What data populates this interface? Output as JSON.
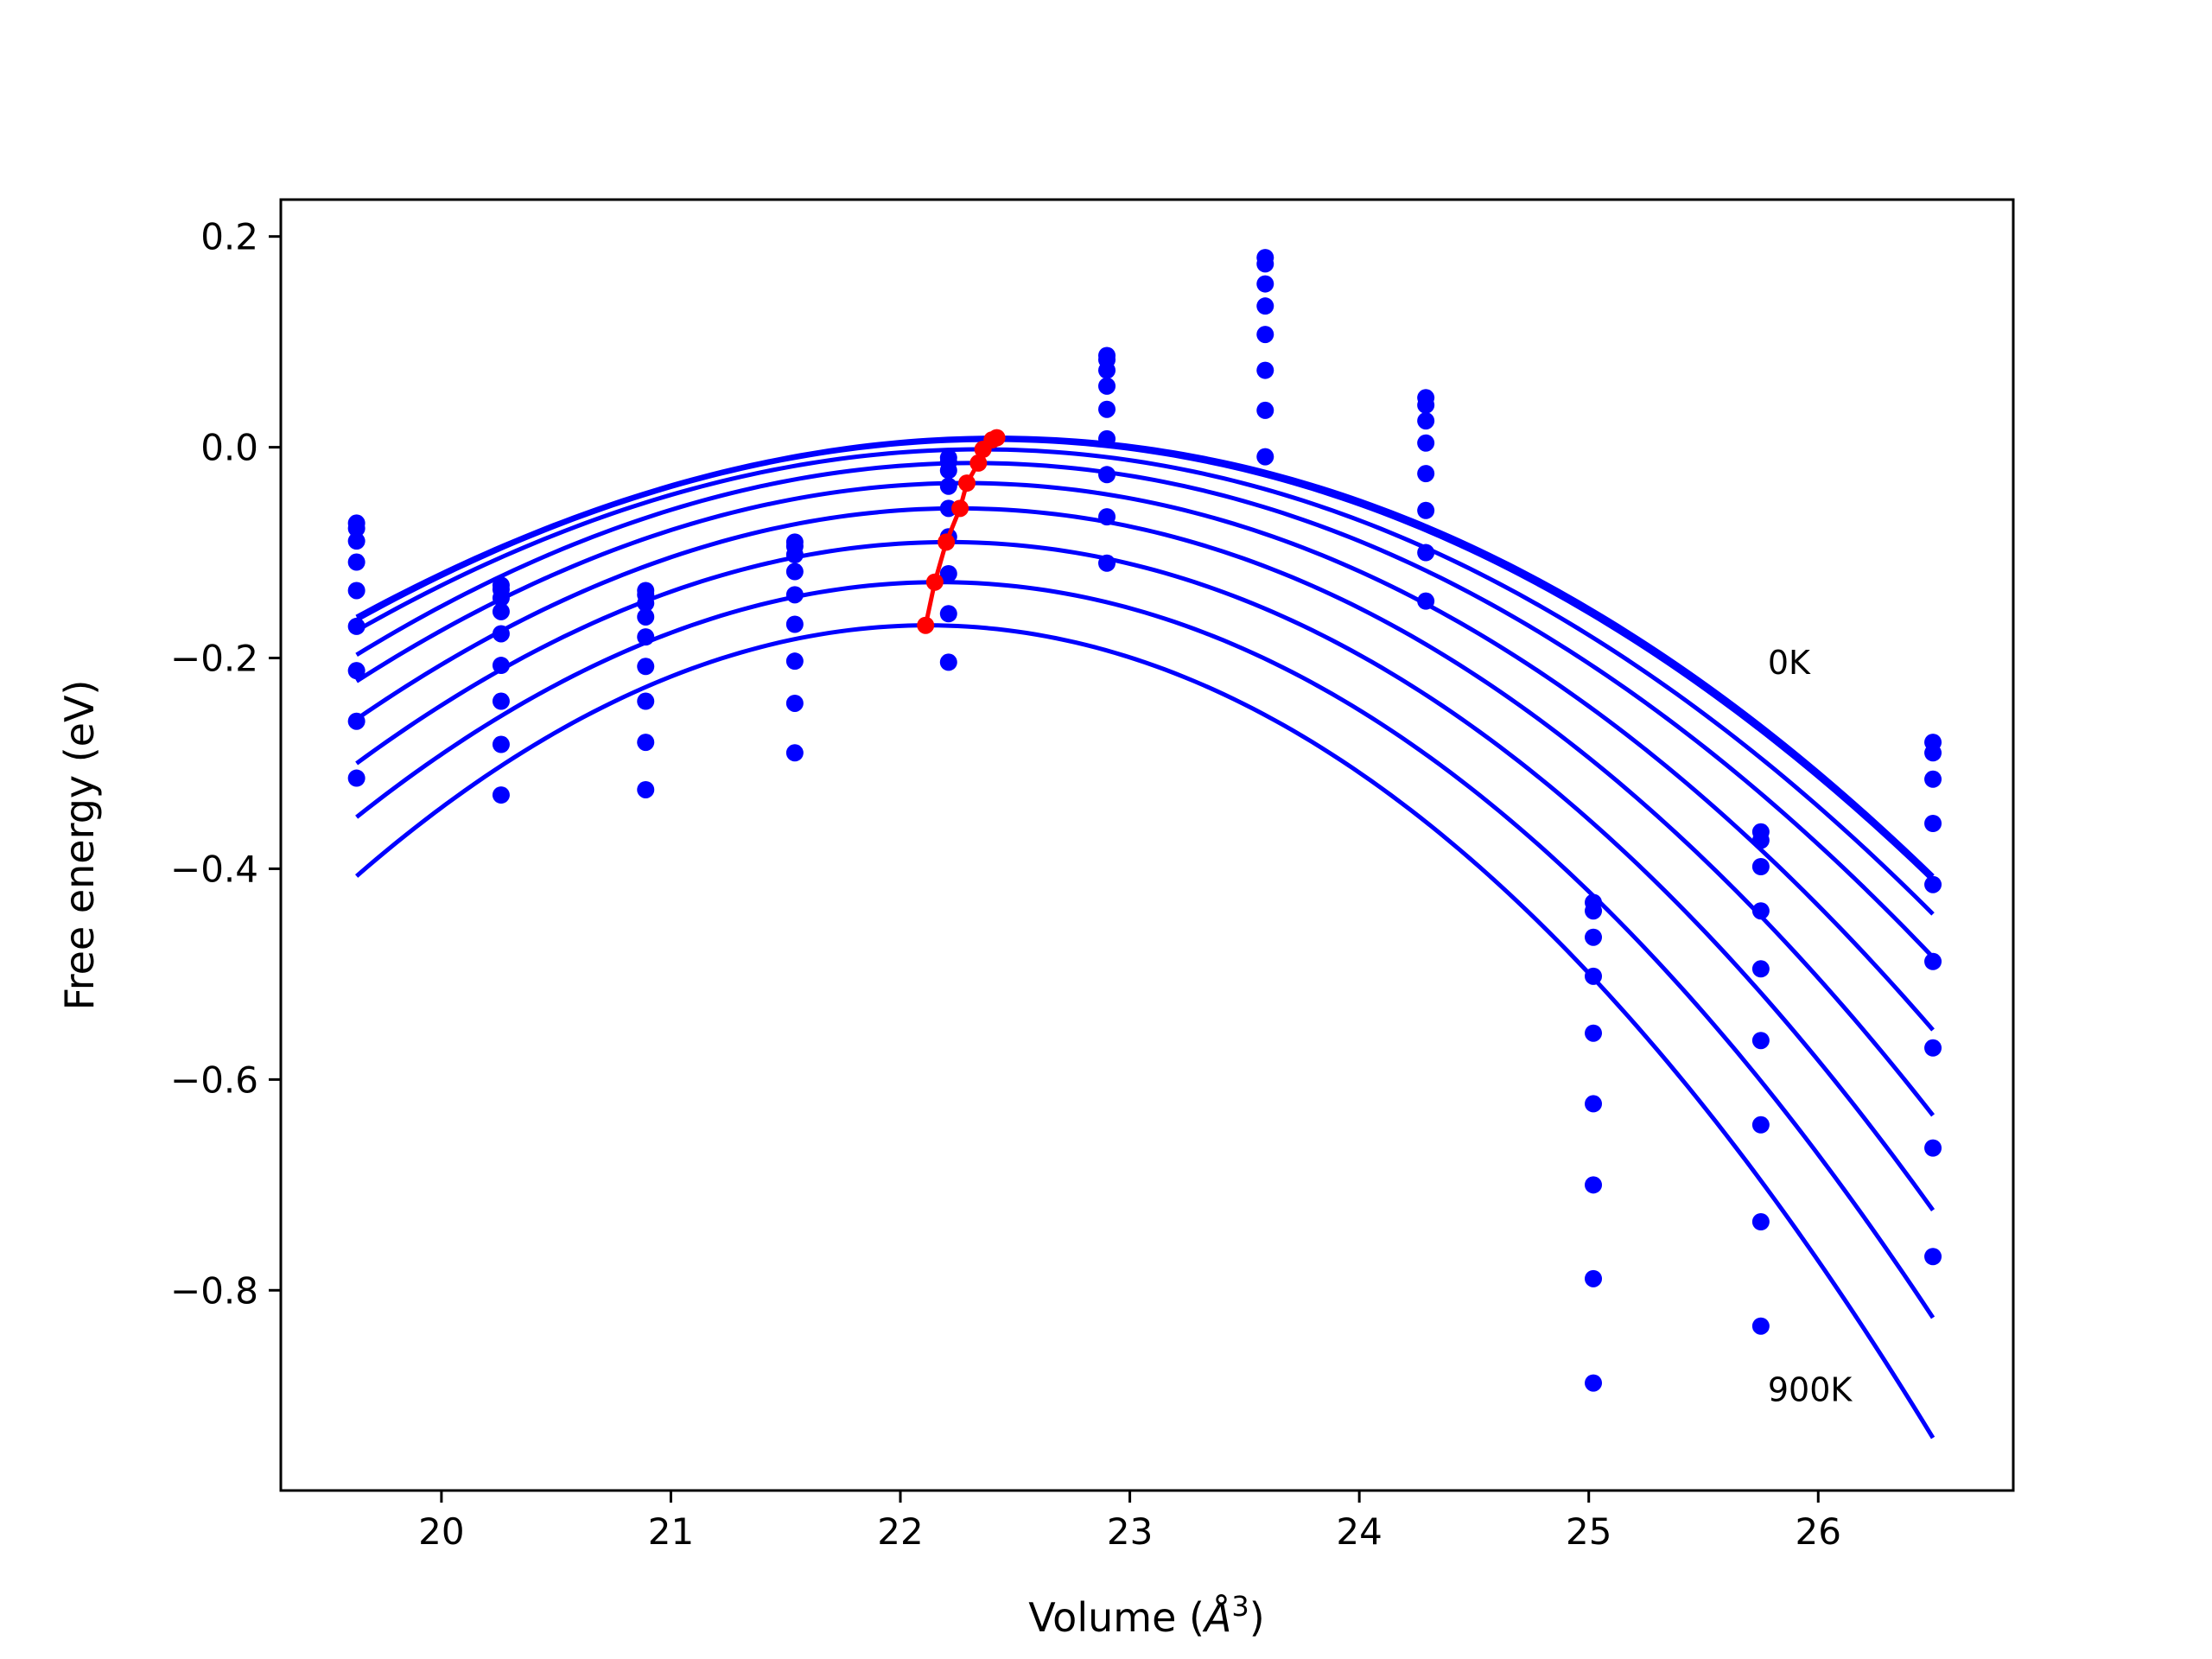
{
  "chart_data": {
    "type": "scatter",
    "xlabel": "Volume (Å³)",
    "xlabel_parts": {
      "base": "Volume (",
      "italic": "Å",
      "sup": "3",
      "close": ")"
    },
    "ylabel": "Free energy (eV)",
    "xlim": [
      19.3,
      26.85
    ],
    "ylim": [
      -0.99,
      0.235
    ],
    "xticks": [
      20,
      21,
      22,
      23,
      24,
      25,
      26
    ],
    "xtick_labels": [
      "20",
      "21",
      "22",
      "23",
      "24",
      "25",
      "26"
    ],
    "yticks": [
      0.2,
      0.0,
      -0.2,
      -0.4,
      -0.6,
      -0.8
    ],
    "ytick_labels": [
      "0.2",
      "0.0",
      "−0.2",
      "−0.4",
      "−0.6",
      "−0.8"
    ],
    "grid": false,
    "annotations": [
      {
        "text": "0K",
        "x": 25.78,
        "y": -0.215
      },
      {
        "text": "900K",
        "x": 25.78,
        "y": -0.905
      }
    ],
    "colors": {
      "points": "#0000ff",
      "fits": "#0000ff",
      "minima": "#ff0000"
    },
    "points": [
      {
        "volume": 19.63,
        "energies": [
          -0.072,
          -0.077,
          -0.089,
          -0.109,
          -0.136,
          -0.17,
          -0.212,
          -0.26,
          -0.314
        ]
      },
      {
        "volume": 20.26,
        "energies": [
          -0.131,
          -0.135,
          -0.143,
          -0.156,
          -0.177,
          -0.207,
          -0.241,
          -0.282,
          -0.33
        ]
      },
      {
        "volume": 20.89,
        "energies": [
          -0.136,
          -0.14,
          -0.148,
          -0.161,
          -0.18,
          -0.208,
          -0.241,
          -0.28,
          -0.325
        ]
      },
      {
        "volume": 21.54,
        "energies": [
          -0.09,
          -0.094,
          -0.102,
          -0.118,
          -0.14,
          -0.168,
          -0.203,
          -0.243,
          -0.29
        ]
      },
      {
        "volume": 22.21,
        "energies": [
          -0.01,
          -0.014,
          -0.022,
          -0.037,
          -0.058,
          -0.085,
          -0.12,
          -0.158,
          -0.204
        ]
      },
      {
        "volume": 22.9,
        "energies": [
          0.087,
          0.083,
          0.073,
          0.058,
          0.036,
          0.008,
          -0.026,
          -0.066,
          -0.11
        ]
      },
      {
        "volume": 23.59,
        "energies": [
          0.18,
          0.174,
          0.155,
          0.134,
          0.107,
          0.073,
          0.035,
          -0.009
        ]
      },
      {
        "volume": 24.29,
        "energies": [
          0.047,
          0.04,
          0.025,
          0.004,
          -0.025,
          -0.06,
          -0.1,
          -0.146
        ]
      },
      {
        "volume": 25.02,
        "energies": [
          -0.432,
          -0.44,
          -0.465,
          -0.502,
          -0.556,
          -0.623,
          -0.7,
          -0.789,
          -0.888
        ]
      },
      {
        "volume": 25.75,
        "energies": [
          -0.365,
          -0.373,
          -0.398,
          -0.44,
          -0.495,
          -0.563,
          -0.643,
          -0.735,
          -0.834
        ]
      },
      {
        "volume": 26.5,
        "energies": [
          -0.28,
          -0.29,
          -0.315,
          -0.357,
          -0.415,
          -0.488,
          -0.57,
          -0.665,
          -0.768
        ]
      }
    ],
    "fit_curves": {
      "x_range": [
        19.63,
        26.5
      ],
      "curves": [
        {
          "vmin": 22.42,
          "emax": 0.009,
          "y_start": -0.161,
          "y_end": -0.407
        },
        {
          "vmin": 22.4,
          "emax": 0.007,
          "y_start": -0.164,
          "y_end": -0.411
        },
        {
          "vmin": 22.35,
          "emax": -0.002,
          "y_start": -0.174,
          "y_end": -0.443
        },
        {
          "vmin": 22.32,
          "emax": -0.015,
          "y_start": -0.197,
          "y_end": -0.484
        },
        {
          "vmin": 22.28,
          "emax": -0.034,
          "y_start": -0.222,
          "y_end": -0.553
        },
        {
          "vmin": 22.25,
          "emax": -0.058,
          "y_start": -0.258,
          "y_end": -0.634
        },
        {
          "vmin": 22.21,
          "emax": -0.09,
          "y_start": -0.3,
          "y_end": -0.724
        },
        {
          "vmin": 22.17,
          "emax": -0.128,
          "y_start": -0.351,
          "y_end": -0.826
        },
        {
          "vmin": 22.12,
          "emax": -0.169,
          "y_start": -0.407,
          "y_end": -0.94
        }
      ]
    },
    "minima": {
      "x": [
        22.42,
        22.4,
        22.36,
        22.34,
        22.29,
        22.26,
        22.2,
        22.15,
        22.11
      ],
      "y": [
        0.009,
        0.007,
        -0.002,
        -0.015,
        -0.034,
        -0.058,
        -0.09,
        -0.128,
        -0.169
      ]
    }
  }
}
